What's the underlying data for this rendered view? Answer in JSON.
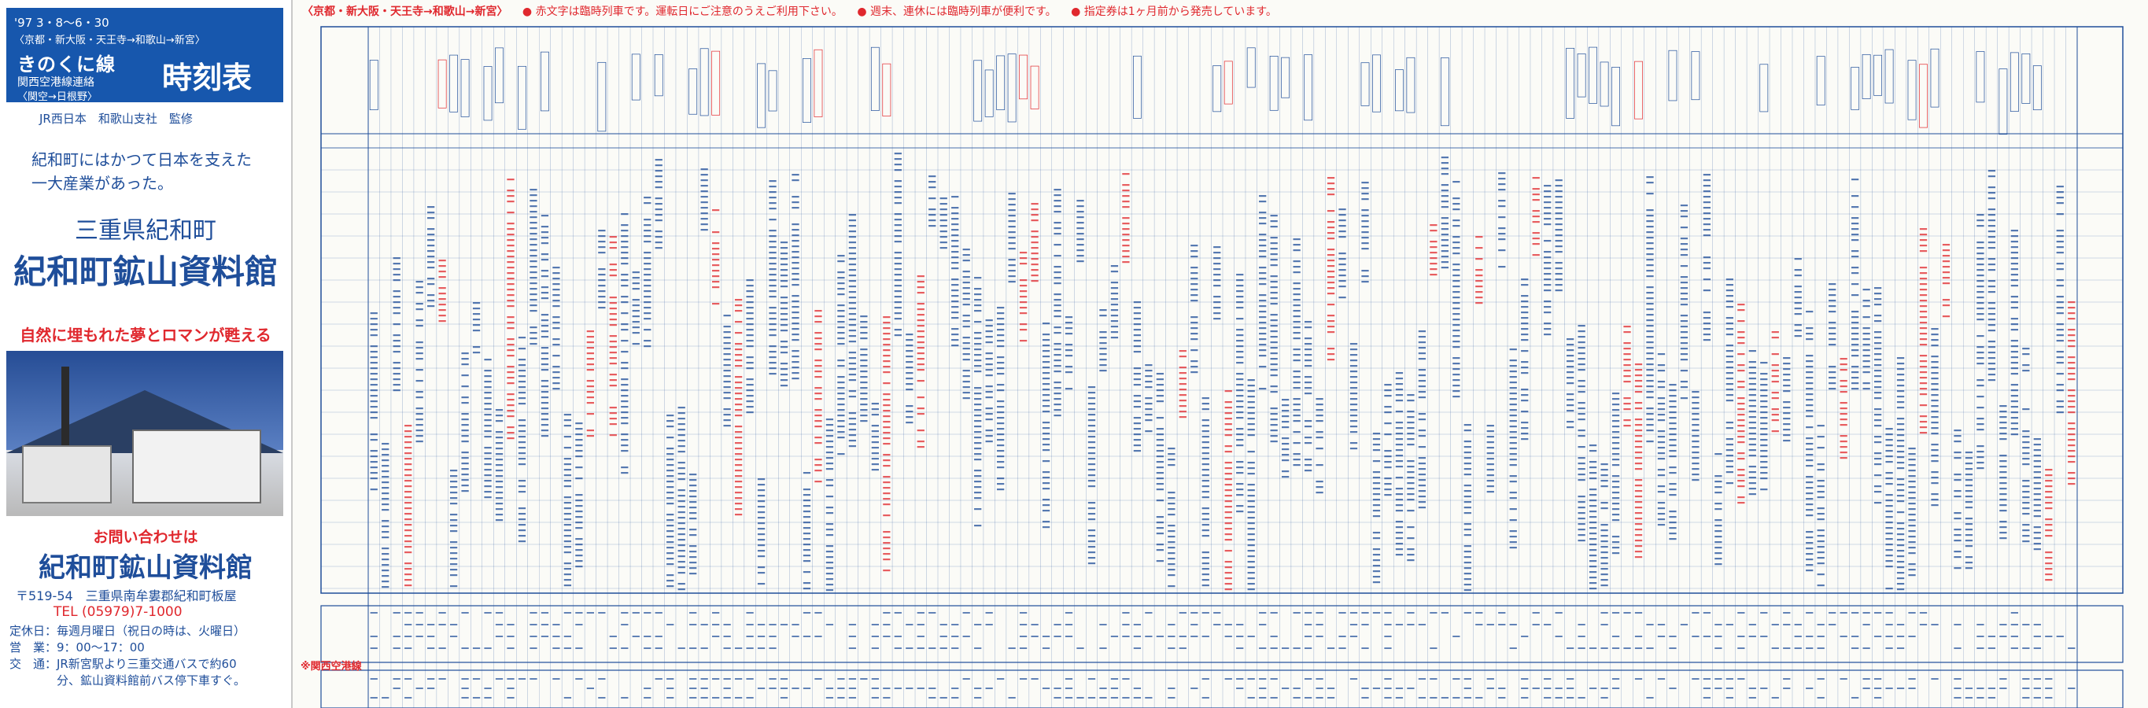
{
  "cover": {
    "date": "'97 3・8〜6・30",
    "route": "〈京都・新大阪・天王寺→和歌山→新宮〉",
    "line_name": "きのくに線",
    "timetable": "時刻表",
    "sub1": "関西空港線連絡",
    "sub2": "〈関空→日根野〉",
    "supervise": "JR西日本　和歌山支社　監修",
    "catch_line1": "紀和町にはかつて日本を支えた",
    "catch_line2": "一大産業があった。",
    "town": "三重県紀和町",
    "museum": "紀和町鉱山資料館",
    "slogan": "自然に埋もれた夢とロマンが甦える",
    "inquiry": "お問い合わせは",
    "museum_small": "紀和町鉱山資料館",
    "address": "〒519-54　三重県南牟婁郡紀和町板屋",
    "tel": "TEL (05979)7-1000",
    "closed": "定休日：毎週月曜日（祝日の時は、火曜日）",
    "hours": "営　業：9：00〜17：00",
    "access1": "交　通：JR新宮駅より三重交通バスで約60",
    "access2": "　　　　分、鉱山資料館前バス停下車すぐ。"
  },
  "header": {
    "route": "〈京都・新大阪・天王寺→和歌山→新宮〉",
    "note1": "赤文字は臨時列車です。運転日にご注意のうえご利用下さい。",
    "note2": "週末、連休には臨時列車が便利です。",
    "note3": "指定券は1ヶ月前から発売しています。"
  },
  "bottom_section": "関西空港線",
  "colors": {
    "blue": "#1f4e9a",
    "red": "#e0282e",
    "cover_bg": "#1757ad"
  }
}
